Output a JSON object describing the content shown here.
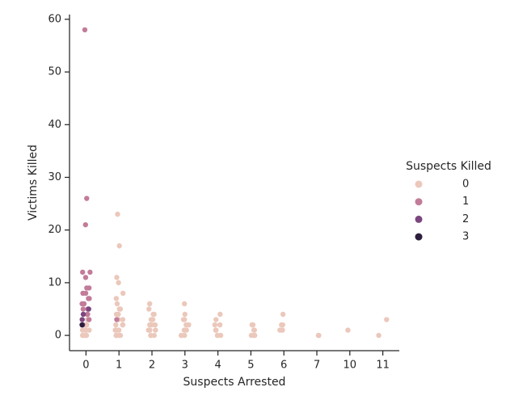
{
  "chart_data": {
    "type": "strip",
    "x_label": "Suspects Arrested",
    "y_label": "Victims Killed",
    "legend_title": "Suspects Killed",
    "legend_position": "right",
    "categories": [
      "0",
      "1",
      "2",
      "3",
      "4",
      "5",
      "6",
      "7",
      "10",
      "11"
    ],
    "ylim": [
      -2.9,
      60.9
    ],
    "yticks": [
      0,
      10,
      20,
      30,
      40,
      50,
      60
    ],
    "series": [
      {
        "name": "0",
        "color": "#ebc8bb",
        "x": [
          "0",
          "0",
          "0",
          "0",
          "0",
          "0",
          "0",
          "0",
          "0",
          "0",
          "0",
          "0",
          "0",
          "0",
          "0",
          "1",
          "1",
          "1",
          "1",
          "1",
          "1",
          "1",
          "1",
          "1",
          "1",
          "1",
          "1",
          "1",
          "1",
          "1",
          "1",
          "1",
          "1",
          "1",
          "1",
          "1",
          "1",
          "1",
          "1",
          "2",
          "2",
          "2",
          "2",
          "2",
          "2",
          "2",
          "2",
          "2",
          "2",
          "2",
          "2",
          "2",
          "2",
          "2",
          "3",
          "3",
          "3",
          "3",
          "3",
          "3",
          "3",
          "3",
          "3",
          "3",
          "3",
          "4",
          "4",
          "4",
          "4",
          "4",
          "4",
          "4",
          "4",
          "4",
          "5",
          "5",
          "5",
          "5",
          "5",
          "5",
          "5",
          "6",
          "6",
          "6",
          "6",
          "6",
          "7",
          "7",
          "10",
          "11",
          "11"
        ],
        "values": [
          0,
          0,
          0,
          0,
          1,
          1,
          1,
          1,
          2,
          2,
          2,
          3,
          3,
          0,
          1,
          0,
          0,
          0,
          0,
          1,
          1,
          1,
          2,
          2,
          2,
          3,
          3,
          4,
          4,
          5,
          5,
          6,
          7,
          8,
          10,
          11,
          17,
          23,
          0,
          0,
          0,
          0,
          1,
          1,
          1,
          2,
          2,
          2,
          3,
          3,
          4,
          4,
          5,
          6,
          0,
          0,
          0,
          1,
          1,
          2,
          2,
          3,
          3,
          4,
          6,
          0,
          0,
          0,
          1,
          1,
          2,
          2,
          3,
          4,
          0,
          0,
          1,
          1,
          2,
          2,
          0,
          1,
          1,
          2,
          2,
          4,
          0,
          0,
          1,
          3,
          0
        ]
      },
      {
        "name": "1",
        "color": "#c27c99",
        "x": [
          "0",
          "0",
          "0",
          "0",
          "0",
          "0",
          "0",
          "0",
          "0",
          "0",
          "0",
          "0",
          "0",
          "0",
          "0",
          "0",
          "0",
          "0",
          "0",
          "1"
        ],
        "values": [
          58,
          26,
          21,
          12,
          12,
          11,
          9,
          9,
          8,
          8,
          7,
          7,
          6,
          6,
          5,
          5,
          4,
          4,
          3,
          3
        ]
      },
      {
        "name": "2",
        "color": "#7c4780",
        "x": [
          "0",
          "0",
          "0",
          "0"
        ],
        "values": [
          5,
          4,
          3,
          2
        ]
      },
      {
        "name": "3",
        "color": "#2d1e3e",
        "x": [
          "0"
        ],
        "values": [
          2
        ]
      }
    ]
  }
}
